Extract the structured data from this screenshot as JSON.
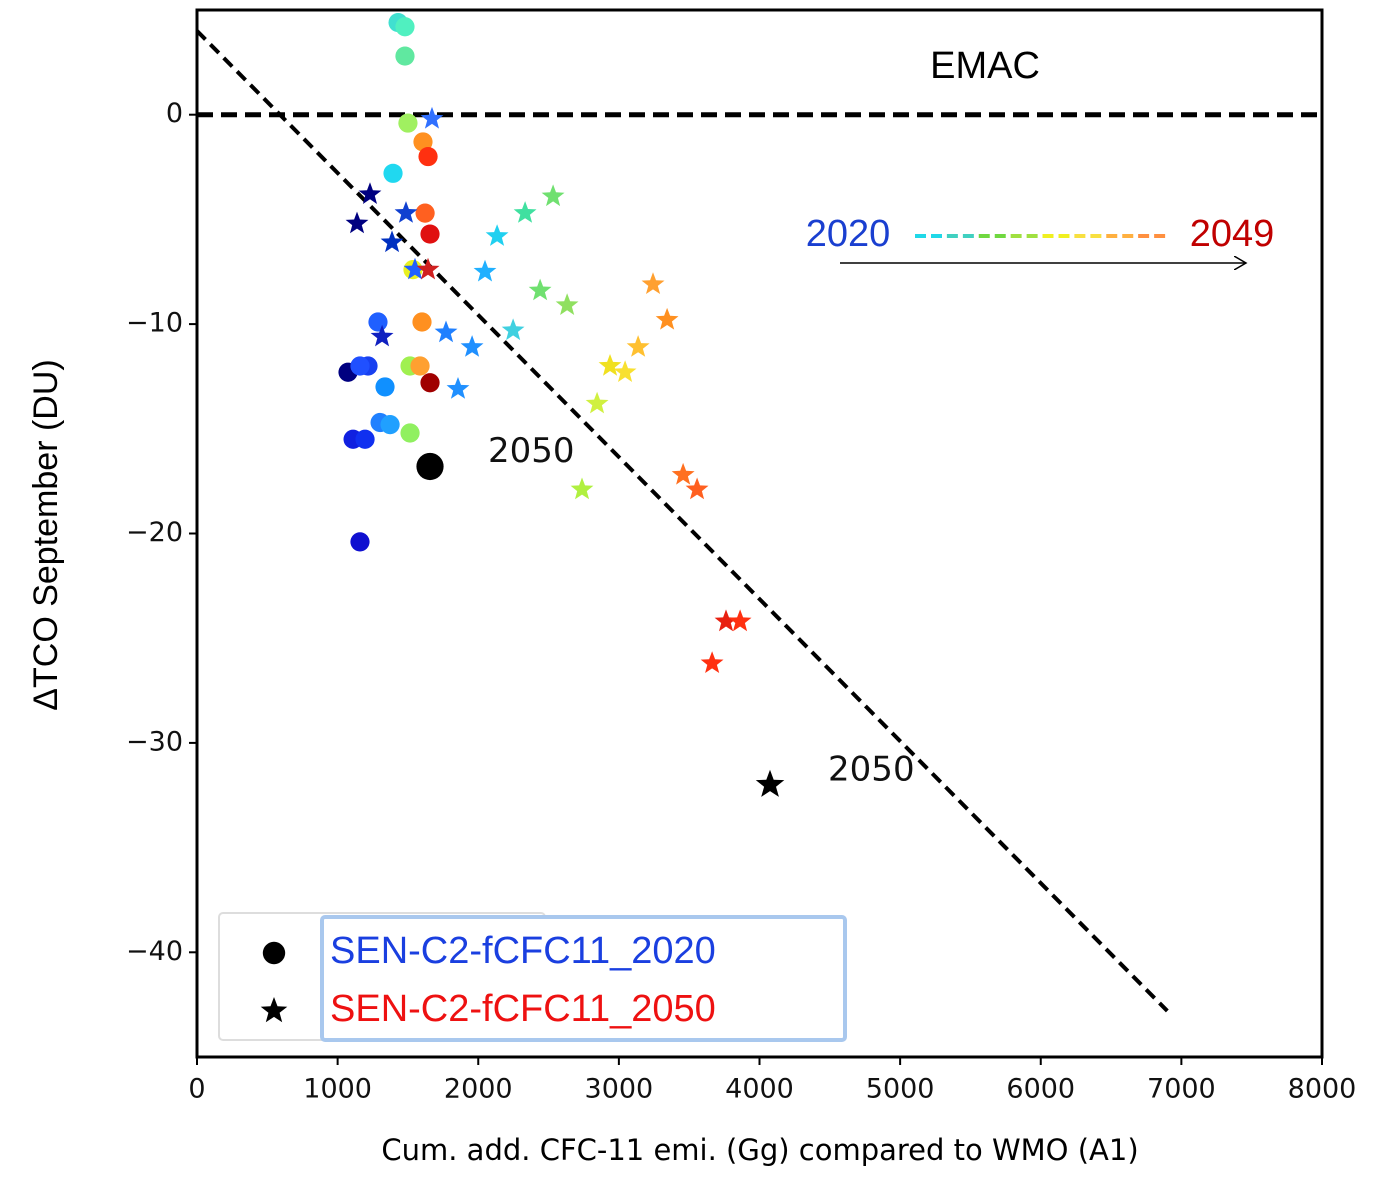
{
  "chart_data": {
    "type": "scatter",
    "note": "EMAC",
    "xlabel": "Cum. add. CFC-11 emi. (Gg) compared to WMO (A1)",
    "ylabel": "ΔTCO  September (DU)",
    "xlim": [
      0,
      8000
    ],
    "ylim": [
      -45,
      5
    ],
    "xticks": [
      0,
      1000,
      2000,
      3000,
      4000,
      5000,
      6000,
      7000,
      8000
    ],
    "yticks": [
      {
        "value": -40,
        "label": "−40"
      },
      {
        "value": -30,
        "label": "−30"
      },
      {
        "value": -20,
        "label": "−20"
      },
      {
        "value": -10,
        "label": "−10"
      },
      0
    ],
    "hline": 0,
    "fit_line": {
      "x": [
        0,
        6900
      ],
      "y": [
        4,
        -42.8
      ]
    },
    "legend": "lower left",
    "year_range": {
      "start": "2020",
      "end": "2049",
      "start_color": "#1a3fd0",
      "end_color": "#c00000",
      "gradient": [
        "#20d8e8",
        "#40d0c0",
        "#70d840",
        "#a0e040",
        "#f0f020",
        "#f8e040",
        "#ffb040",
        "#ff9040"
      ]
    },
    "series": [
      {
        "name": "SEN-C2-fCFC11_2020",
        "marker": "circle",
        "color": "#000000",
        "label_color": "#1a3fe0",
        "x": [
          1430,
          1479,
          1479,
          1500,
          1607,
          1643,
          1394,
          1622,
          1657,
          1536,
          1287,
          1600,
          1074,
          1216,
          1159,
          1515,
          1586,
          1657,
          1337,
          1302,
          1373,
          1515,
          1110,
          1195,
          1159
        ],
        "values": [
          4.4,
          4.2,
          2.8,
          -0.4,
          -1.3,
          -2.0,
          -2.8,
          -4.7,
          -5.7,
          -7.4,
          -9.9,
          -9.9,
          -12.3,
          -12.0,
          -12.0,
          -12.0,
          -12.0,
          -12.8,
          -13.0,
          -14.7,
          -14.8,
          -15.2,
          -15.5,
          -15.5,
          -20.4
        ],
        "colors": [
          "#40e0d0",
          "#50f0c0",
          "#60e8a0",
          "#a0f060",
          "#ff9020",
          "#ff3010",
          "#20d8f0",
          "#ff6020",
          "#e01010",
          "#e8f020",
          "#2060ff",
          "#ff9020",
          "#000080",
          "#1840f0",
          "#2050ff",
          "#a0f050",
          "#ffa030",
          "#a00000",
          "#1090ff",
          "#2080ff",
          "#20a0ff",
          "#90f060",
          "#1020e0",
          "#1030f0",
          "#1010d0"
        ]
      },
      {
        "name": "SEN-C2-fCFC11_2050",
        "marker": "star",
        "color": "#000000",
        "label_color": "#ee1111",
        "x": [
          1671,
          1230,
          1486,
          1138,
          1387,
          1550,
          1643,
          2532,
          2333,
          2134,
          2048,
          2440,
          2632,
          2248,
          1771,
          1316,
          1956,
          1856,
          3243,
          3343,
          3137,
          2937,
          3044,
          2845,
          2738,
          3457,
          3556,
          3762,
          3862,
          3663
        ],
        "values": [
          -0.2,
          -3.8,
          -4.7,
          -5.2,
          -6.1,
          -7.4,
          -7.4,
          -3.9,
          -4.7,
          -5.8,
          -7.5,
          -8.4,
          -9.1,
          -10.3,
          -10.4,
          -10.6,
          -11.1,
          -13.1,
          -8.1,
          -9.8,
          -11.1,
          -12.0,
          -12.3,
          -13.8,
          -17.9,
          -17.2,
          -17.9,
          -24.2,
          -24.2,
          -26.2
        ],
        "colors": [
          "#3070ff",
          "#000080",
          "#1040d0",
          "#000080",
          "#0030c0",
          "#2060ff",
          "#d02020",
          "#70e070",
          "#40e0a0",
          "#20d0f0",
          "#20b0ff",
          "#70e070",
          "#90e060",
          "#40d0e0",
          "#2080ff",
          "#1020c0",
          "#2090ff",
          "#2090ff",
          "#ffa030",
          "#ff9020",
          "#ffc030",
          "#f0e020",
          "#f8e030",
          "#d0f040",
          "#b0f040",
          "#ff7020",
          "#ff6020",
          "#e82010",
          "#ff3010",
          "#ff3010"
        ]
      }
    ],
    "final_points": [
      {
        "label": "2050",
        "marker": "circle",
        "x": 1657,
        "y": -16.8
      },
      {
        "label": "2050",
        "marker": "star",
        "x": 4075,
        "y": -32.0
      }
    ]
  }
}
